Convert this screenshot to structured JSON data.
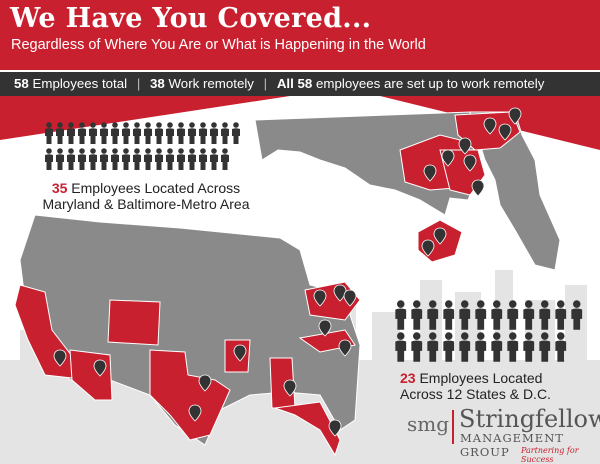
{
  "header": {
    "title": "We Have You Covered...",
    "subtitle": "Regardless of Where You Are or What is Happening in the World"
  },
  "stats": {
    "total_number": "58",
    "total_label": "Employees total",
    "remote_number": "38",
    "remote_label": "Work remotely",
    "all_prefix": "All 58",
    "all_label": "employees are set up to work remotely",
    "separator": "|"
  },
  "maryland_callout": {
    "number": "35",
    "line1": "Employees Located Across",
    "line2": "Maryland & Baltimore-Metro Area",
    "employee_count": 35
  },
  "states_callout": {
    "number": "23",
    "line1": "Employees Located",
    "line2": "Across 12 States & D.C.",
    "employee_count": 23
  },
  "logo": {
    "abbr": "smg",
    "name": "Stringfellow",
    "subname": "MANAGEMENT GROUP",
    "tagline": "Partnering for Success"
  },
  "colors": {
    "brand_red": "#c8202f",
    "dark_bar": "#333333",
    "map_gray": "#8a8a8a",
    "border": "#ffffff"
  },
  "icons": [
    "person-icon",
    "map-pin-icon"
  ]
}
